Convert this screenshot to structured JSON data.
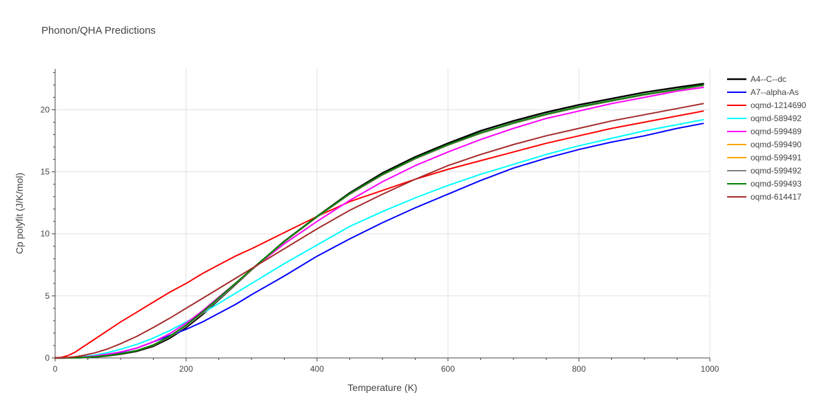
{
  "chart_data": {
    "type": "line",
    "title": "Phonon/QHA Predictions",
    "xlabel": "Temperature (K)",
    "ylabel": "Cp polyfit (J/K/mol)",
    "xlim": [
      0,
      1000
    ],
    "ylim": [
      0,
      23.3
    ],
    "xticks": [
      0,
      200,
      400,
      600,
      800,
      1000
    ],
    "yticks": [
      0,
      5,
      10,
      15,
      20
    ],
    "grid": true,
    "legend_position": "right",
    "x": [
      0,
      10,
      20,
      30,
      40,
      60,
      80,
      100,
      125,
      150,
      175,
      200,
      225,
      250,
      275,
      300,
      350,
      400,
      450,
      500,
      550,
      600,
      650,
      700,
      750,
      800,
      850,
      900,
      950,
      990
    ],
    "series": [
      {
        "name": "A4--C--dc",
        "color": "#000000",
        "width": 2.5,
        "values": [
          0,
          0.002,
          0.006,
          0.015,
          0.03,
          0.08,
          0.17,
          0.31,
          0.55,
          0.95,
          1.6,
          2.45,
          3.5,
          4.7,
          5.9,
          7.1,
          9.4,
          11.4,
          13.3,
          14.9,
          16.2,
          17.3,
          18.3,
          19.1,
          19.8,
          20.4,
          20.9,
          21.4,
          21.8,
          22.1
        ]
      },
      {
        "name": "A7--alpha-As",
        "color": "#0000ff",
        "width": 2,
        "values": [
          0,
          0.003,
          0.01,
          0.025,
          0.05,
          0.12,
          0.25,
          0.45,
          0.8,
          1.3,
          1.8,
          2.3,
          2.9,
          3.6,
          4.3,
          5.1,
          6.6,
          8.2,
          9.6,
          10.9,
          12.1,
          13.2,
          14.3,
          15.3,
          16.1,
          16.8,
          17.4,
          17.9,
          18.5,
          18.9
        ]
      },
      {
        "name": "oqmd-1214690",
        "color": "#ff0000",
        "width": 2,
        "values": [
          0,
          0.05,
          0.2,
          0.45,
          0.8,
          1.5,
          2.2,
          2.9,
          3.7,
          4.5,
          5.3,
          6.0,
          6.8,
          7.5,
          8.2,
          8.8,
          10.1,
          11.4,
          12.6,
          13.5,
          14.4,
          15.2,
          15.9,
          16.6,
          17.3,
          17.9,
          18.5,
          19.0,
          19.5,
          19.9
        ]
      },
      {
        "name": "oqmd-589492",
        "color": "#00ffff",
        "width": 2,
        "values": [
          0,
          0.005,
          0.02,
          0.045,
          0.09,
          0.22,
          0.42,
          0.7,
          1.1,
          1.6,
          2.2,
          2.9,
          3.6,
          4.4,
          5.2,
          6.0,
          7.6,
          9.1,
          10.6,
          11.8,
          12.9,
          13.9,
          14.8,
          15.6,
          16.4,
          17.1,
          17.7,
          18.3,
          18.8,
          19.2
        ]
      },
      {
        "name": "oqmd-599489",
        "color": "#ff00ff",
        "width": 2,
        "values": [
          0,
          0.003,
          0.01,
          0.03,
          0.06,
          0.15,
          0.3,
          0.48,
          0.8,
          1.3,
          1.95,
          2.8,
          3.8,
          4.9,
          6.0,
          7.1,
          9.2,
          11.0,
          12.7,
          14.2,
          15.5,
          16.6,
          17.6,
          18.5,
          19.3,
          19.9,
          20.5,
          21.0,
          21.5,
          21.8
        ]
      },
      {
        "name": "oqmd-599490",
        "color": "#ffa500",
        "width": 2,
        "values": [
          0,
          0.002,
          0.007,
          0.018,
          0.035,
          0.09,
          0.19,
          0.34,
          0.6,
          1.02,
          1.7,
          2.55,
          3.6,
          4.75,
          5.95,
          7.1,
          9.35,
          11.35,
          13.2,
          14.75,
          16.05,
          17.15,
          18.1,
          18.9,
          19.6,
          20.2,
          20.7,
          21.2,
          21.6,
          21.95
        ]
      },
      {
        "name": "oqmd-599491",
        "color": "#ffa500",
        "width": 2,
        "values": [
          0,
          0.002,
          0.007,
          0.018,
          0.035,
          0.09,
          0.19,
          0.34,
          0.6,
          1.02,
          1.7,
          2.55,
          3.6,
          4.75,
          5.95,
          7.1,
          9.35,
          11.35,
          13.2,
          14.75,
          16.05,
          17.15,
          18.1,
          18.9,
          19.6,
          20.2,
          20.7,
          21.2,
          21.6,
          21.95
        ]
      },
      {
        "name": "oqmd-599492",
        "color": "#808080",
        "width": 2,
        "values": [
          0,
          0.002,
          0.007,
          0.018,
          0.035,
          0.09,
          0.19,
          0.34,
          0.6,
          1.02,
          1.7,
          2.55,
          3.6,
          4.75,
          5.95,
          7.1,
          9.35,
          11.35,
          13.2,
          14.75,
          16.05,
          17.15,
          18.1,
          18.9,
          19.6,
          20.2,
          20.7,
          21.2,
          21.6,
          21.95
        ]
      },
      {
        "name": "oqmd-599493",
        "color": "#008000",
        "width": 2,
        "values": [
          0,
          0.002,
          0.007,
          0.018,
          0.035,
          0.09,
          0.19,
          0.34,
          0.6,
          1.05,
          1.75,
          2.65,
          3.7,
          4.85,
          6.0,
          7.15,
          9.4,
          11.4,
          13.25,
          14.8,
          16.1,
          17.2,
          18.15,
          18.95,
          19.65,
          20.25,
          20.75,
          21.25,
          21.65,
          22.0
        ]
      },
      {
        "name": "oqmd-614417",
        "color": "#a52a2a",
        "width": 2,
        "values": [
          0,
          0.01,
          0.04,
          0.09,
          0.17,
          0.4,
          0.72,
          1.15,
          1.75,
          2.45,
          3.2,
          4.0,
          4.8,
          5.6,
          6.4,
          7.2,
          8.8,
          10.4,
          11.9,
          13.2,
          14.4,
          15.5,
          16.4,
          17.2,
          17.9,
          18.5,
          19.1,
          19.6,
          20.1,
          20.5
        ]
      }
    ]
  }
}
